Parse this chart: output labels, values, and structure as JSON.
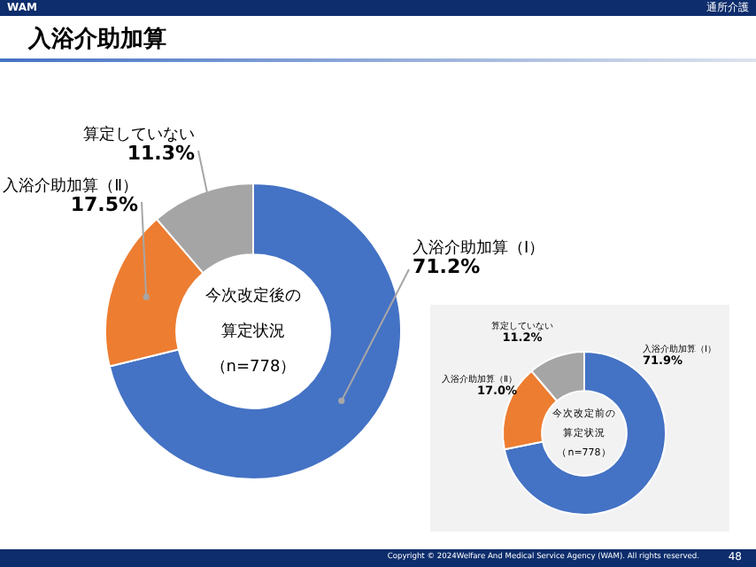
{
  "chart_data": [
    {
      "type": "donut",
      "title": "入浴介助加算",
      "categories": [
        "入浴介助加算（Ⅰ）",
        "入浴介助加算（Ⅱ）",
        "算定していない"
      ],
      "values": [
        71.2,
        17.5,
        11.3
      ],
      "value_labels": [
        "71.2%",
        "17.5%",
        "11.3%"
      ],
      "colors": [
        "#4472c4",
        "#ed7d31",
        "#a5a5a5"
      ],
      "legend": false,
      "annotations": [
        "今次改定後の算定状況",
        "（n=778）",
        "WAM",
        "通所介護",
        "Copyright © 2024Welfare And Medical Service Agency (WAM). All rights reserved.",
        "48"
      ]
    },
    {
      "type": "donut",
      "categories": [
        "入浴介助加算（Ⅰ）",
        "入浴介助加算（Ⅱ）",
        "算定していない"
      ],
      "values": [
        71.9,
        17.0,
        11.2
      ],
      "value_labels": [
        "71.9%",
        "17.0%",
        "11.2%"
      ],
      "colors": [
        "#4472c4",
        "#ed7d31",
        "#a5a5a5"
      ],
      "legend": false,
      "annotations": [
        "今次改定前の算定状況",
        "（n=778）"
      ]
    }
  ]
}
